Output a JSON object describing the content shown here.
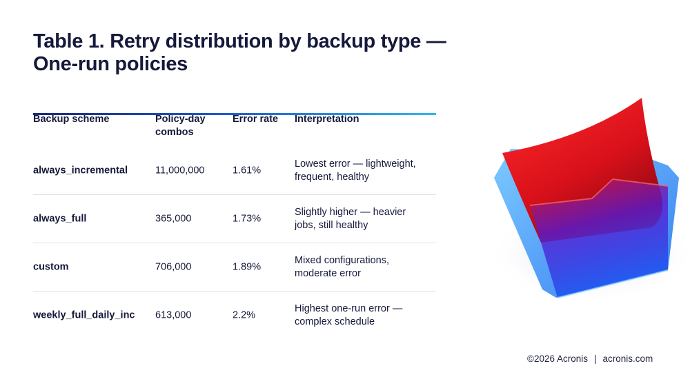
{
  "title": {
    "line1": "Table 1. Retry distribution by backup type —",
    "line2": "One-run policies"
  },
  "table": {
    "headers": {
      "scheme": "Backup scheme",
      "combos_line1": "Policy-day",
      "combos_line2": "combos",
      "error_rate": "Error rate",
      "interpretation": "Interpretation"
    },
    "rows": [
      {
        "scheme": "always_incremental",
        "combos": "11,000,000",
        "error_rate": "1.61%",
        "interp_line1": "Lowest error — lightweight,",
        "interp_line2": "frequent, healthy"
      },
      {
        "scheme": "always_full",
        "combos": "365,000",
        "error_rate": "1.73%",
        "interp_line1": "Slightly higher — heavier",
        "interp_line2": "jobs, still healthy"
      },
      {
        "scheme": "custom",
        "combos": "706,000",
        "error_rate": "1.89%",
        "interp_line1": "Mixed configurations,",
        "interp_line2": "moderate error"
      },
      {
        "scheme": "weekly_full_daily_inc",
        "combos": "613,000",
        "error_rate": "2.2%",
        "interp_line1": "Highest one-run error —",
        "interp_line2": "complex schedule"
      }
    ]
  },
  "footer": {
    "copyright": "©2026 Acronis",
    "separator": "|",
    "site": "acronis.com"
  },
  "illustration": {
    "name": "folder-icon",
    "colors": {
      "red": "#e0141e",
      "blue": "#1e6cf0",
      "light_blue": "#5fb8ff"
    }
  }
}
